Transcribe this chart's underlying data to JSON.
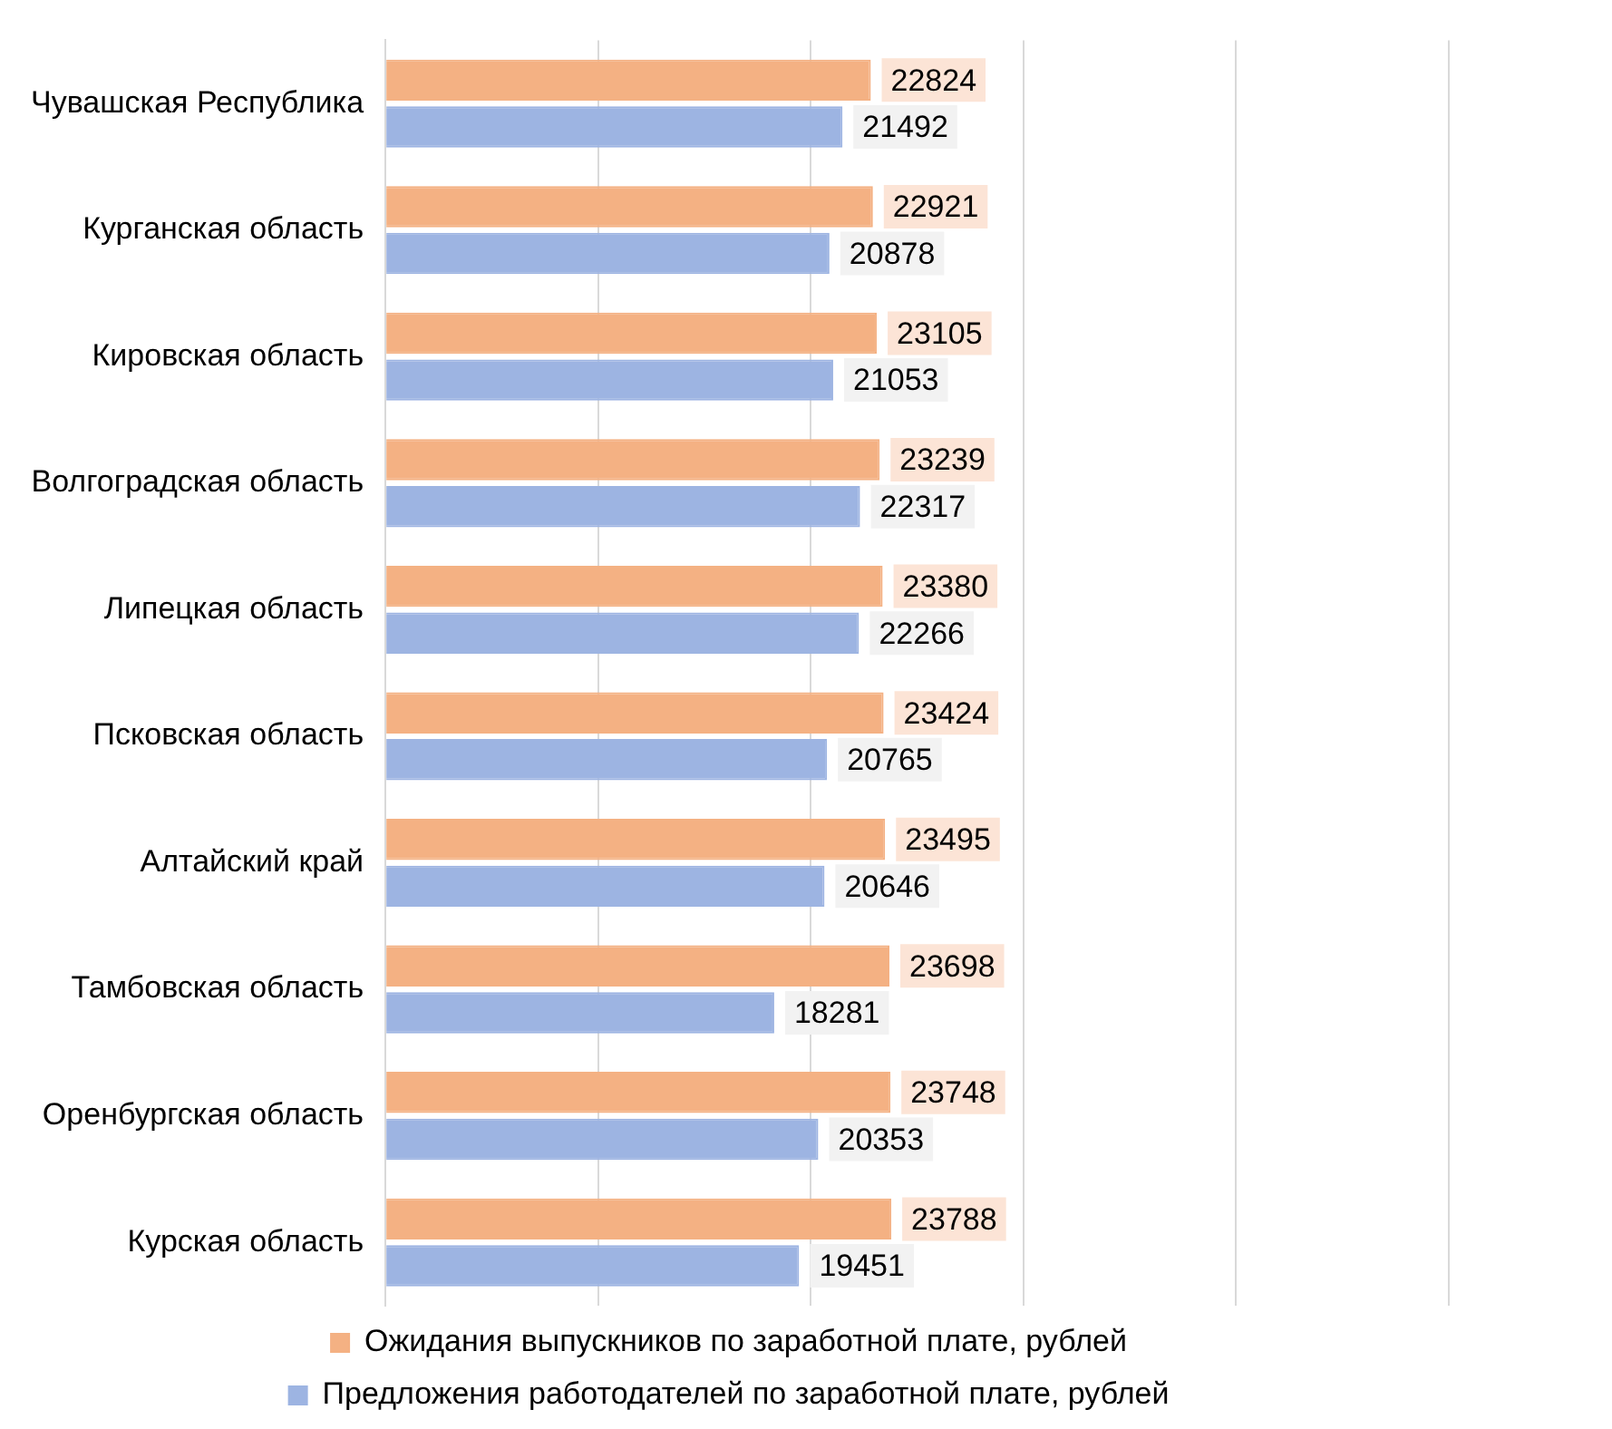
{
  "chart_data": {
    "type": "bar",
    "orientation": "horizontal",
    "categories": [
      "Чувашская Республика",
      "Курганская область",
      "Кировская область",
      "Волгоградская область",
      "Липецкая область",
      "Псковская область",
      "Алтайский край",
      "Тамбовская область",
      "Оренбургская область",
      "Курская область"
    ],
    "series": [
      {
        "name": "Предложения работодателей по заработной плате, рублей",
        "color": "#9db4e2",
        "values": [
          21492,
          20878,
          21053,
          22317,
          22266,
          20765,
          20646,
          18281,
          20353,
          19451
        ]
      },
      {
        "name": "Ожидания выпускников по заработной плате, рублей",
        "color": "#f4b183",
        "values": [
          22824,
          22921,
          23105,
          23239,
          23380,
          23424,
          23495,
          23698,
          23748,
          23788
        ]
      }
    ],
    "xlim": [
      0,
      50000
    ],
    "xticks": [
      {
        "value": 0,
        "label": null
      },
      {
        "value": 10000,
        "label": null
      },
      {
        "value": 20000,
        "label": null
      },
      {
        "value": 30000,
        "label": null
      },
      {
        "value": 40000,
        "label": null
      },
      {
        "value": 50000,
        "label": null
      }
    ],
    "tick_labels": "y",
    "grid": "x",
    "data_labels": true,
    "legend": "bottom"
  }
}
